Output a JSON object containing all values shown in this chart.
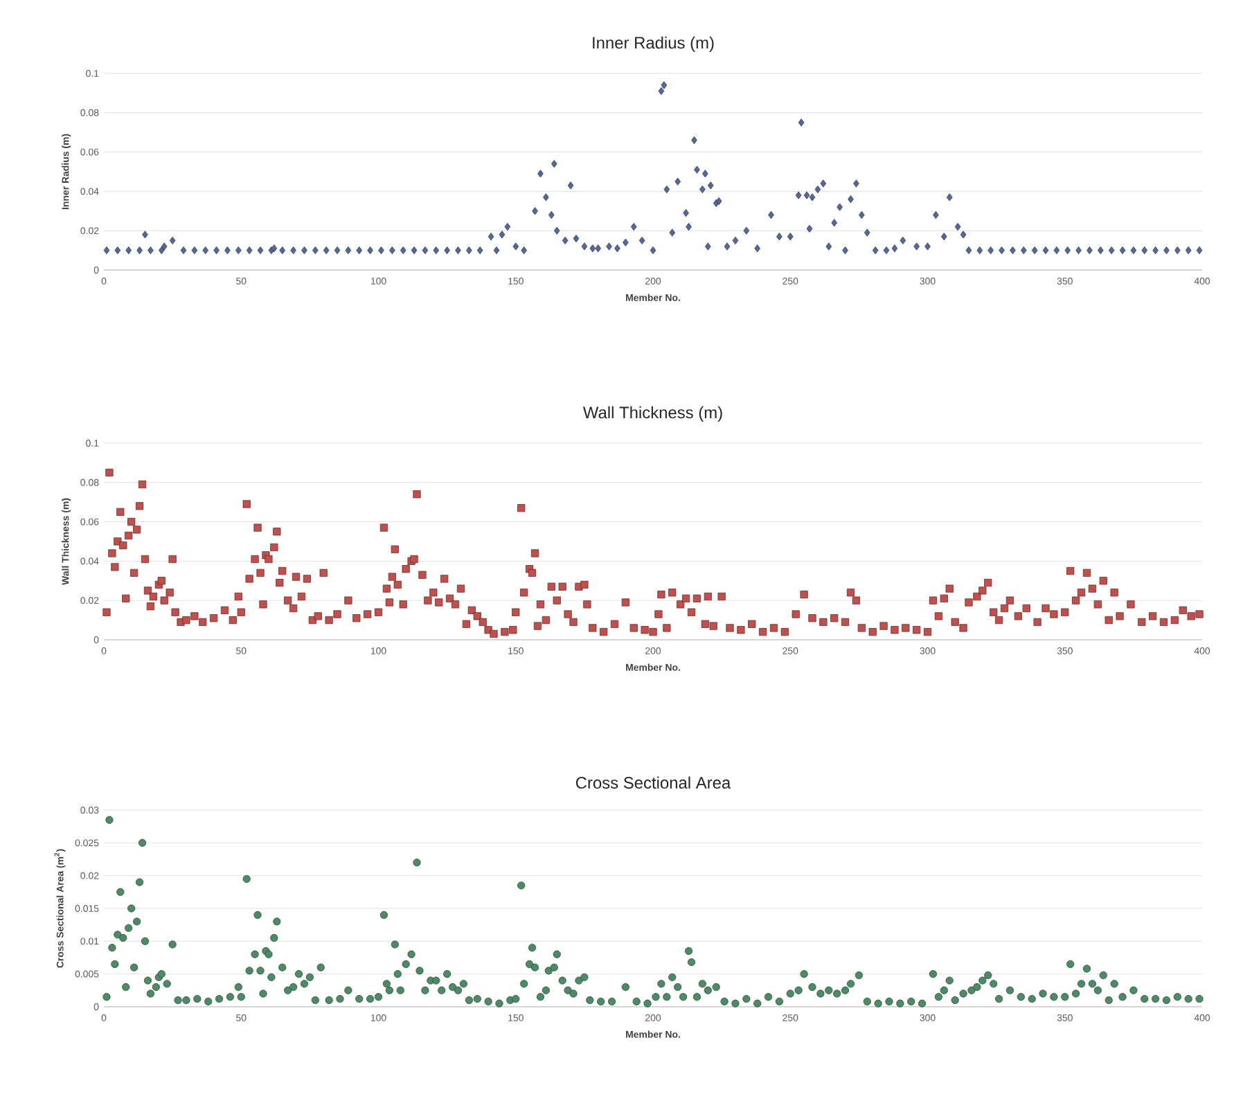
{
  "chart_data": [
    {
      "type": "scatter",
      "title": "Inner Radius (m)",
      "xlabel": "Member No.",
      "ylabel": "Inner Radius (m)",
      "marker": "diamond",
      "grid": "y",
      "xlim": [
        0,
        400
      ],
      "xticks": [
        0,
        50,
        100,
        150,
        200,
        250,
        300,
        350,
        400
      ],
      "ylim": [
        0,
        0.1
      ],
      "yticks": [
        0,
        0.02,
        0.04,
        0.06,
        0.08,
        0.1
      ],
      "series": [
        {
          "color": "#56679a",
          "x": [
            1,
            5,
            9,
            13,
            15,
            17,
            21,
            22,
            25,
            29,
            33,
            37,
            41,
            45,
            49,
            53,
            57,
            61,
            62,
            65,
            69,
            73,
            77,
            81,
            85,
            89,
            93,
            97,
            101,
            105,
            109,
            113,
            117,
            121,
            125,
            129,
            133,
            137,
            141,
            143,
            145,
            147,
            150,
            153,
            157,
            159,
            161,
            163,
            164,
            165,
            168,
            170,
            172,
            175,
            178,
            180,
            184,
            187,
            190,
            193,
            196,
            200,
            203,
            204,
            205,
            207,
            209,
            212,
            213,
            215,
            216,
            218,
            219,
            220,
            221,
            223,
            224,
            227,
            230,
            234,
            238,
            243,
            246,
            250,
            253,
            254,
            256,
            257,
            258,
            260,
            262,
            264,
            266,
            268,
            270,
            272,
            274,
            276,
            278,
            281,
            285,
            288,
            291,
            296,
            300,
            303,
            306,
            308,
            311,
            313,
            315,
            319,
            323,
            327,
            331,
            335,
            339,
            343,
            347,
            351,
            355,
            359,
            363,
            367,
            371,
            375,
            379,
            383,
            387,
            391,
            395,
            399
          ],
          "values": [
            0.01,
            0.01,
            0.01,
            0.01,
            0.018,
            0.01,
            0.01,
            0.012,
            0.015,
            0.01,
            0.01,
            0.01,
            0.01,
            0.01,
            0.01,
            0.01,
            0.01,
            0.01,
            0.011,
            0.01,
            0.01,
            0.01,
            0.01,
            0.01,
            0.01,
            0.01,
            0.01,
            0.01,
            0.01,
            0.01,
            0.01,
            0.01,
            0.01,
            0.01,
            0.01,
            0.01,
            0.01,
            0.01,
            0.017,
            0.01,
            0.018,
            0.022,
            0.012,
            0.01,
            0.03,
            0.049,
            0.037,
            0.028,
            0.054,
            0.02,
            0.015,
            0.043,
            0.016,
            0.012,
            0.011,
            0.011,
            0.012,
            0.011,
            0.014,
            0.022,
            0.015,
            0.01,
            0.091,
            0.094,
            0.041,
            0.019,
            0.045,
            0.029,
            0.022,
            0.066,
            0.051,
            0.041,
            0.049,
            0.012,
            0.043,
            0.034,
            0.035,
            0.012,
            0.015,
            0.02,
            0.011,
            0.028,
            0.017,
            0.017,
            0.038,
            0.075,
            0.038,
            0.021,
            0.037,
            0.041,
            0.044,
            0.012,
            0.024,
            0.032,
            0.01,
            0.036,
            0.044,
            0.028,
            0.019,
            0.01,
            0.01,
            0.011,
            0.015,
            0.012,
            0.012,
            0.028,
            0.017,
            0.037,
            0.022,
            0.018,
            0.01,
            0.01,
            0.01,
            0.01,
            0.01,
            0.01,
            0.01,
            0.01,
            0.01,
            0.01,
            0.01,
            0.01,
            0.01,
            0.01,
            0.01,
            0.01,
            0.01,
            0.01,
            0.01,
            0.01,
            0.01,
            0.01
          ]
        }
      ]
    },
    {
      "type": "scatter",
      "title": "Wall Thickness (m)",
      "xlabel": "Member No.",
      "ylabel": "Wall Thickness (m)",
      "marker": "square",
      "grid": "y",
      "xlim": [
        0,
        400
      ],
      "xticks": [
        0,
        50,
        100,
        150,
        200,
        250,
        300,
        350,
        400
      ],
      "ylim": [
        0,
        0.1
      ],
      "yticks": [
        0,
        0.02,
        0.04,
        0.06,
        0.08,
        0.1
      ],
      "series": [
        {
          "color": "#c0504d",
          "x": [
            1,
            2,
            3,
            4,
            5,
            6,
            7,
            8,
            9,
            10,
            11,
            12,
            13,
            14,
            15,
            16,
            17,
            18,
            20,
            21,
            22,
            24,
            25,
            26,
            28,
            30,
            33,
            36,
            40,
            44,
            47,
            49,
            50,
            52,
            53,
            55,
            56,
            57,
            58,
            59,
            60,
            62,
            63,
            64,
            65,
            67,
            69,
            70,
            72,
            74,
            76,
            78,
            80,
            82,
            85,
            89,
            92,
            96,
            100,
            102,
            103,
            104,
            105,
            106,
            107,
            109,
            110,
            112,
            113,
            114,
            116,
            118,
            120,
            122,
            124,
            126,
            128,
            130,
            132,
            134,
            136,
            138,
            140,
            142,
            146,
            149,
            150,
            152,
            153,
            155,
            156,
            157,
            158,
            159,
            161,
            163,
            165,
            167,
            169,
            171,
            173,
            175,
            176,
            178,
            182,
            186,
            190,
            193,
            197,
            200,
            202,
            203,
            205,
            207,
            210,
            212,
            214,
            216,
            219,
            220,
            222,
            225,
            228,
            232,
            236,
            240,
            244,
            248,
            252,
            255,
            258,
            262,
            266,
            270,
            272,
            274,
            276,
            280,
            284,
            288,
            292,
            296,
            300,
            302,
            304,
            306,
            308,
            310,
            313,
            315,
            318,
            320,
            322,
            324,
            326,
            328,
            330,
            333,
            336,
            340,
            343,
            346,
            350,
            352,
            354,
            356,
            358,
            360,
            362,
            364,
            366,
            368,
            370,
            374,
            378,
            382,
            386,
            390,
            393,
            396,
            399
          ],
          "values": [
            0.014,
            0.085,
            0.044,
            0.037,
            0.05,
            0.065,
            0.048,
            0.021,
            0.053,
            0.06,
            0.034,
            0.056,
            0.068,
            0.079,
            0.041,
            0.025,
            0.017,
            0.022,
            0.028,
            0.03,
            0.02,
            0.024,
            0.041,
            0.014,
            0.009,
            0.01,
            0.012,
            0.009,
            0.011,
            0.015,
            0.01,
            0.022,
            0.014,
            0.069,
            0.031,
            0.041,
            0.057,
            0.034,
            0.018,
            0.043,
            0.041,
            0.047,
            0.055,
            0.029,
            0.035,
            0.02,
            0.016,
            0.032,
            0.022,
            0.031,
            0.01,
            0.012,
            0.034,
            0.01,
            0.013,
            0.02,
            0.011,
            0.013,
            0.014,
            0.057,
            0.026,
            0.019,
            0.032,
            0.046,
            0.028,
            0.018,
            0.036,
            0.04,
            0.041,
            0.074,
            0.033,
            0.02,
            0.024,
            0.019,
            0.031,
            0.021,
            0.018,
            0.026,
            0.008,
            0.015,
            0.012,
            0.009,
            0.005,
            0.003,
            0.004,
            0.005,
            0.014,
            0.067,
            0.024,
            0.036,
            0.034,
            0.044,
            0.007,
            0.018,
            0.01,
            0.027,
            0.02,
            0.027,
            0.013,
            0.009,
            0.027,
            0.028,
            0.018,
            0.006,
            0.004,
            0.008,
            0.019,
            0.006,
            0.005,
            0.004,
            0.013,
            0.023,
            0.006,
            0.024,
            0.018,
            0.021,
            0.014,
            0.021,
            0.008,
            0.022,
            0.007,
            0.022,
            0.006,
            0.005,
            0.008,
            0.004,
            0.006,
            0.004,
            0.013,
            0.023,
            0.011,
            0.009,
            0.011,
            0.009,
            0.024,
            0.02,
            0.006,
            0.004,
            0.007,
            0.005,
            0.006,
            0.005,
            0.004,
            0.02,
            0.012,
            0.021,
            0.026,
            0.009,
            0.006,
            0.019,
            0.022,
            0.025,
            0.029,
            0.014,
            0.01,
            0.016,
            0.02,
            0.012,
            0.016,
            0.009,
            0.016,
            0.013,
            0.014,
            0.035,
            0.02,
            0.024,
            0.034,
            0.026,
            0.018,
            0.03,
            0.01,
            0.024,
            0.012,
            0.018,
            0.009,
            0.012,
            0.009,
            0.01,
            0.015,
            0.012,
            0.013
          ]
        }
      ]
    },
    {
      "type": "scatter",
      "title": "Cross Sectional Area",
      "xlabel": "Member No.",
      "ylabel": "Cross Sectional Area (m$^{2}$)",
      "marker": "circle",
      "grid": "y",
      "xlim": [
        0,
        400
      ],
      "xticks": [
        0,
        50,
        100,
        150,
        200,
        250,
        300,
        350,
        400
      ],
      "ylim": [
        0,
        0.03
      ],
      "yticks": [
        0,
        0.005,
        0.01,
        0.015,
        0.02,
        0.025,
        0.03
      ],
      "series": [
        {
          "color": "#4f8a66",
          "x": [
            1,
            2,
            3,
            4,
            5,
            6,
            7,
            8,
            9,
            10,
            11,
            12,
            13,
            14,
            15,
            16,
            17,
            19,
            20,
            21,
            23,
            25,
            27,
            30,
            34,
            38,
            42,
            46,
            49,
            50,
            52,
            53,
            55,
            56,
            57,
            58,
            59,
            60,
            61,
            62,
            63,
            65,
            67,
            69,
            71,
            73,
            75,
            77,
            79,
            82,
            86,
            89,
            93,
            97,
            100,
            102,
            103,
            104,
            106,
            107,
            108,
            110,
            112,
            114,
            115,
            117,
            119,
            121,
            123,
            125,
            127,
            129,
            131,
            133,
            136,
            140,
            144,
            148,
            150,
            152,
            153,
            155,
            156,
            157,
            159,
            161,
            162,
            164,
            165,
            167,
            169,
            171,
            173,
            175,
            177,
            181,
            185,
            190,
            194,
            198,
            201,
            203,
            205,
            207,
            209,
            211,
            213,
            214,
            216,
            218,
            220,
            223,
            226,
            230,
            234,
            238,
            242,
            246,
            250,
            253,
            255,
            258,
            261,
            264,
            267,
            270,
            272,
            275,
            278,
            282,
            286,
            290,
            294,
            298,
            302,
            304,
            306,
            308,
            310,
            313,
            316,
            318,
            320,
            322,
            324,
            326,
            330,
            334,
            338,
            342,
            346,
            350,
            352,
            354,
            356,
            358,
            360,
            362,
            364,
            366,
            368,
            371,
            375,
            379,
            383,
            387,
            391,
            395,
            399
          ],
          "values": [
            0.0015,
            0.0285,
            0.009,
            0.0065,
            0.011,
            0.0175,
            0.0105,
            0.003,
            0.012,
            0.015,
            0.006,
            0.013,
            0.019,
            0.025,
            0.01,
            0.004,
            0.002,
            0.003,
            0.0045,
            0.005,
            0.0035,
            0.0095,
            0.001,
            0.001,
            0.0012,
            0.0008,
            0.0012,
            0.0015,
            0.003,
            0.0015,
            0.0195,
            0.0055,
            0.008,
            0.014,
            0.0055,
            0.002,
            0.0085,
            0.008,
            0.0045,
            0.0105,
            0.013,
            0.006,
            0.0025,
            0.003,
            0.005,
            0.0035,
            0.0045,
            0.001,
            0.006,
            0.001,
            0.0012,
            0.0025,
            0.0012,
            0.0012,
            0.0015,
            0.014,
            0.0035,
            0.0025,
            0.0095,
            0.005,
            0.0025,
            0.0065,
            0.008,
            0.022,
            0.0055,
            0.0025,
            0.004,
            0.004,
            0.0025,
            0.005,
            0.003,
            0.0025,
            0.0035,
            0.001,
            0.0012,
            0.0008,
            0.0005,
            0.001,
            0.0012,
            0.0185,
            0.0035,
            0.0065,
            0.009,
            0.006,
            0.0015,
            0.0025,
            0.0055,
            0.006,
            0.008,
            0.004,
            0.0025,
            0.002,
            0.004,
            0.0045,
            0.001,
            0.0008,
            0.0008,
            0.003,
            0.0008,
            0.0005,
            0.0015,
            0.0035,
            0.0015,
            0.0045,
            0.003,
            0.0015,
            0.0085,
            0.0068,
            0.0015,
            0.0035,
            0.0025,
            0.003,
            0.0008,
            0.0005,
            0.0012,
            0.0005,
            0.0015,
            0.0008,
            0.002,
            0.0025,
            0.005,
            0.003,
            0.002,
            0.0025,
            0.002,
            0.0025,
            0.0035,
            0.0048,
            0.0008,
            0.0005,
            0.0008,
            0.0005,
            0.0008,
            0.0005,
            0.005,
            0.0015,
            0.0025,
            0.004,
            0.001,
            0.002,
            0.0025,
            0.003,
            0.004,
            0.0048,
            0.0035,
            0.0012,
            0.0025,
            0.0015,
            0.0012,
            0.002,
            0.0015,
            0.0015,
            0.0065,
            0.002,
            0.0035,
            0.0058,
            0.0035,
            0.0025,
            0.0048,
            0.001,
            0.0035,
            0.0015,
            0.0025,
            0.0012,
            0.0012,
            0.001,
            0.0015,
            0.0012,
            0.0012
          ]
        }
      ]
    }
  ]
}
